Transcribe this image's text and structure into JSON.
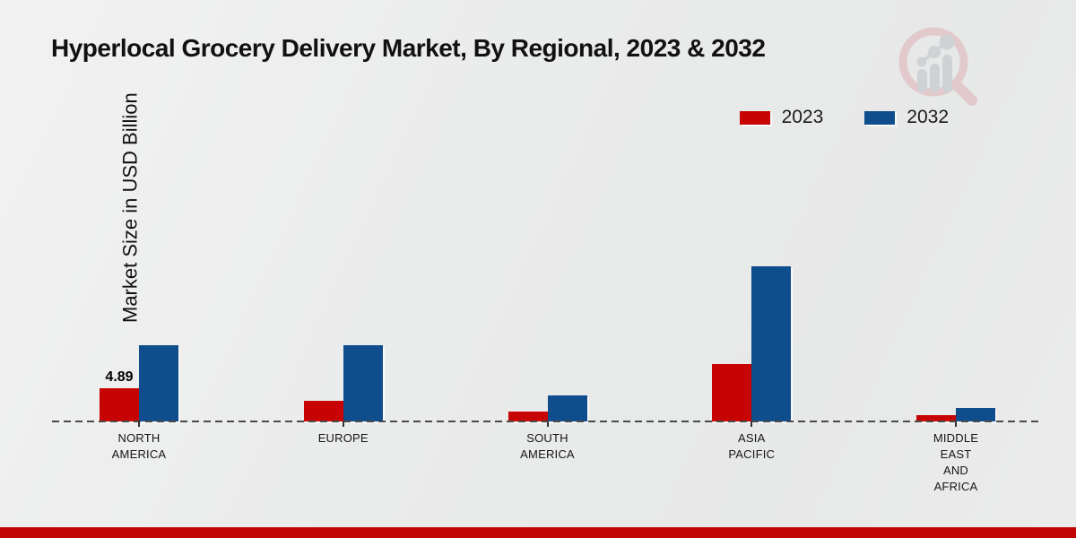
{
  "chart_data": {
    "type": "bar",
    "title": "Hyperlocal Grocery Delivery Market, By Regional, 2023 & 2032",
    "ylabel": "Market Size in USD Billion",
    "xlabel": "",
    "categories": [
      "NORTH AMERICA",
      "EUROPE",
      "SOUTH AMERICA",
      "ASIA PACIFIC",
      "MIDDLE EAST AND AFRICA"
    ],
    "series": [
      {
        "name": "2023",
        "color": "#c80303",
        "values": [
          4.89,
          3.0,
          1.4,
          8.5,
          0.9
        ]
      },
      {
        "name": "2032",
        "color": "#0f4d8c",
        "values": [
          11.2,
          11.2,
          3.8,
          22.9,
          2.0
        ]
      }
    ],
    "annotations": [
      {
        "series": "2023",
        "category": "NORTH AMERICA",
        "text": "4.89"
      }
    ],
    "ylim": [
      0,
      25
    ],
    "grid": false,
    "legend_position": "top-right",
    "baseline_style": "dashed"
  },
  "colors": {
    "footer_bar": "#c10404",
    "axis_dash": "#4a4a4a",
    "watermark_pink": "#dca6ac",
    "watermark_gray": "#b3b8c0"
  }
}
